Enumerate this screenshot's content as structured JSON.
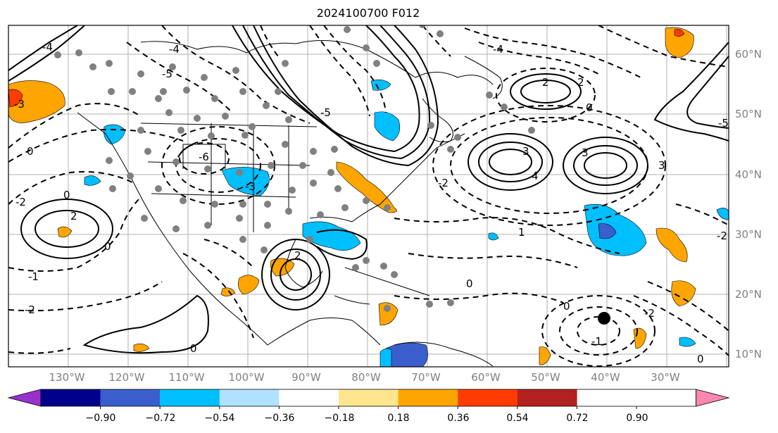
{
  "title": "2024100700 F012",
  "lat_labels": [
    "60°N",
    "50°N",
    "40°N",
    "30°N",
    "20°N",
    "10°N"
  ],
  "lon_labels": [
    "130°W",
    "120°W",
    "110°W",
    "100°W",
    "90°W",
    "80°W",
    "70°W",
    "60°W",
    "50°W",
    "40°W",
    "30°W"
  ],
  "contour_labels": [
    "-2",
    "-3",
    "0",
    "2",
    "-4",
    "-5",
    "-6",
    "-1",
    "3",
    "4",
    "1",
    "-7"
  ],
  "colorbar": {
    "ticks": [
      "−0.90",
      "−0.72",
      "−0.54",
      "−0.36",
      "−0.18",
      "0.18",
      "0.36",
      "0.54",
      "0.72",
      "0.90"
    ],
    "colors": [
      "#9932cc",
      "#00008b",
      "#3a5fcd",
      "#00bfff",
      "#b0e2ff",
      "#ffffff",
      "#fee68e",
      "#ffa500",
      "#ff3c00",
      "#b22222",
      "#ff86b0"
    ]
  }
}
